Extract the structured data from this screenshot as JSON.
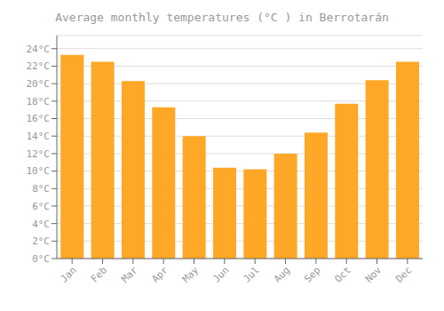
{
  "chart_data": {
    "type": "bar",
    "title": "Average monthly temperatures (°C ) in Berrotarán",
    "categories": [
      "Jan",
      "Feb",
      "Mar",
      "Apr",
      "May",
      "Jun",
      "Jul",
      "Aug",
      "Sep",
      "Oct",
      "Nov",
      "Dec"
    ],
    "values": [
      23.3,
      22.5,
      20.3,
      17.3,
      14.0,
      10.4,
      10.2,
      12.0,
      14.4,
      17.7,
      20.4,
      22.5
    ],
    "color": "#FFA726",
    "ylim": [
      0,
      25.5
    ],
    "yticks": [
      {
        "value": 0,
        "label": "0°C"
      },
      {
        "value": 2,
        "label": "2°C"
      },
      {
        "value": 4,
        "label": "4°C"
      },
      {
        "value": 6,
        "label": "6°C"
      },
      {
        "value": 8,
        "label": "8°C"
      },
      {
        "value": 10,
        "label": "10°C"
      },
      {
        "value": 12,
        "label": "12°C"
      },
      {
        "value": 14,
        "label": "14°C"
      },
      {
        "value": 16,
        "label": "16°C"
      },
      {
        "value": 18,
        "label": "18°C"
      },
      {
        "value": 20,
        "label": "20°C"
      },
      {
        "value": 22,
        "label": "22°C"
      },
      {
        "value": 24,
        "label": "24°C"
      }
    ],
    "grid": true
  }
}
